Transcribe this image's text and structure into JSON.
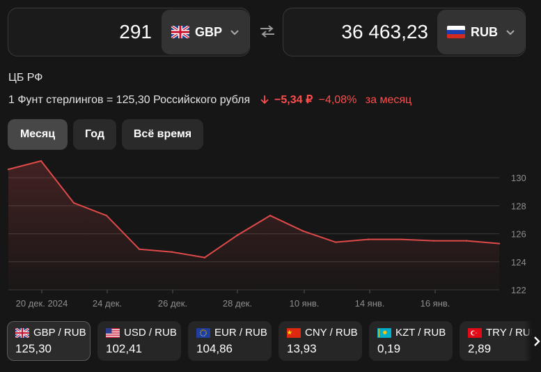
{
  "converter": {
    "from": {
      "amount": "291",
      "currency": "GBP",
      "flag": "uk-flag-icon"
    },
    "to": {
      "amount": "36 463,23",
      "currency": "RUB",
      "flag": "ru-flag-icon"
    }
  },
  "rate_info": {
    "source": "ЦБ РФ",
    "text": "1 Фунт стерлингов = 125,30 Российского рубля",
    "change_abs": "−5,34 ₽",
    "change_pct": "−4,08%",
    "change_period": "за месяц",
    "change_color": "#ff4d4d"
  },
  "periods": [
    {
      "label": "Месяц",
      "active": true
    },
    {
      "label": "Год",
      "active": false
    },
    {
      "label": "Всё время",
      "active": false
    }
  ],
  "chart_data": {
    "type": "line",
    "series": [
      {
        "values": [
          130.6,
          131.2,
          128.2,
          127.3,
          124.9,
          124.7,
          124.3,
          125.9,
          127.3,
          126.2,
          125.4,
          125.6,
          125.6,
          125.5,
          125.5,
          125.3
        ]
      }
    ],
    "x_ticks": [
      "20 дек. 2024",
      "24 дек.",
      "26 дек.",
      "28 дек.",
      "10 янв.",
      "14 янв.",
      "16 янв."
    ],
    "y_ticks": [
      "130",
      "128",
      "126",
      "124",
      "122"
    ],
    "ylim": [
      122,
      131.5
    ],
    "line_color": "#e14a4a",
    "grid": true
  },
  "tiles": [
    {
      "pair": "GBP / RUB",
      "value": "125,30",
      "flag": "uk-flag-icon",
      "active": true
    },
    {
      "pair": "USD / RUB",
      "value": "102,41",
      "flag": "us-flag-icon",
      "active": false
    },
    {
      "pair": "EUR / RUB",
      "value": "104,86",
      "flag": "eu-flag-icon",
      "active": false
    },
    {
      "pair": "CNY / RUB",
      "value": "13,93",
      "flag": "cn-flag-icon",
      "active": false
    },
    {
      "pair": "KZT / RUB",
      "value": "0,19",
      "flag": "kz-flag-icon",
      "active": false
    },
    {
      "pair": "TRY / RUB",
      "value": "2,89",
      "flag": "tr-flag-icon",
      "active": false
    }
  ]
}
